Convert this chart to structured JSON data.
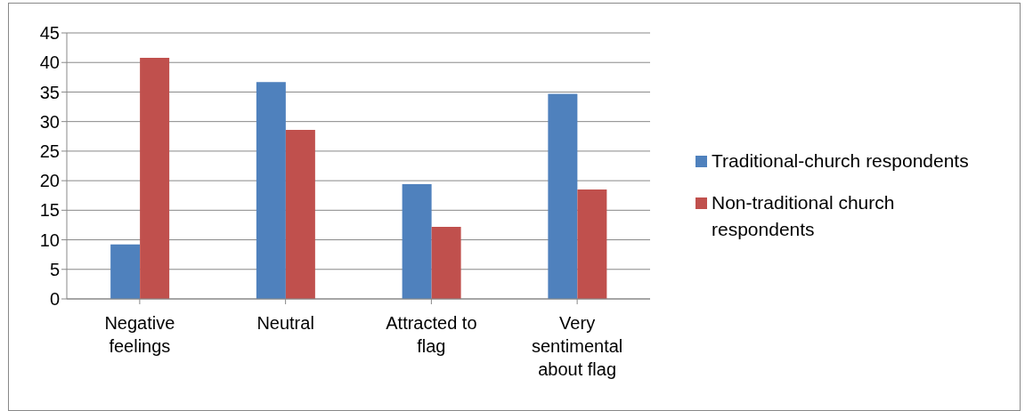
{
  "chart_data": {
    "type": "bar",
    "categories": [
      "Negative feelings",
      "Neutral",
      "Attracted to flag",
      "Very sentimental about flag"
    ],
    "series": [
      {
        "name": "Traditional-church respondents",
        "color": "#4f81bd",
        "values": [
          9.2,
          36.7,
          19.4,
          34.7
        ]
      },
      {
        "name": "Non-traditional church respondents",
        "color": "#c0504d",
        "values": [
          40.8,
          28.6,
          12.2,
          18.5
        ]
      }
    ],
    "ylim": [
      0,
      45
    ],
    "yticks": [
      0,
      5,
      10,
      15,
      20,
      25,
      30,
      35,
      40,
      45
    ],
    "grid": "y",
    "legend": "right"
  }
}
